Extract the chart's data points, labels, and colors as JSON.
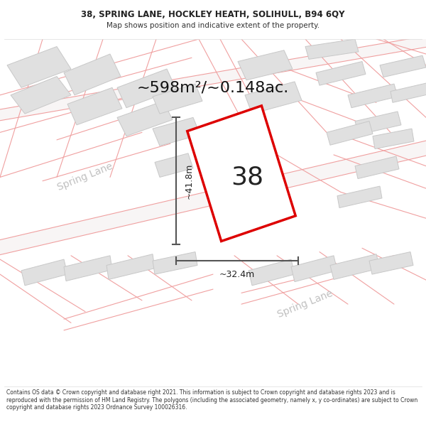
{
  "title_line1": "38, SPRING LANE, HOCKLEY HEATH, SOLIHULL, B94 6QY",
  "title_line2": "Map shows position and indicative extent of the property.",
  "area_text": "~598m²/~0.148ac.",
  "label_38": "38",
  "dim_height": "~41.8m",
  "dim_width": "~32.4m",
  "road_label1": "Spring Lane",
  "road_label2": "Spring Lane",
  "footer_text": "Contains OS data © Crown copyright and database right 2021. This information is subject to Crown copyright and database rights 2023 and is reproduced with the permission of HM Land Registry. The polygons (including the associated geometry, namely x, y co-ordinates) are subject to Crown copyright and database rights 2023 Ordnance Survey 100026316.",
  "map_bg": "#ffffff",
  "cadastral_color": "#f0a0a0",
  "building_fill": "#e0e0e0",
  "building_edge": "#c8c8c8",
  "road_fill": "#f5f5f5",
  "plot_outline_color": "#dd0000",
  "plot_fill": "#ffffff",
  "dim_line_color": "#555555",
  "text_color": "#222222",
  "road_text_color": "#bbbbbb",
  "area_text_fontsize": 16,
  "label_fontsize": 26,
  "dim_fontsize": 9
}
